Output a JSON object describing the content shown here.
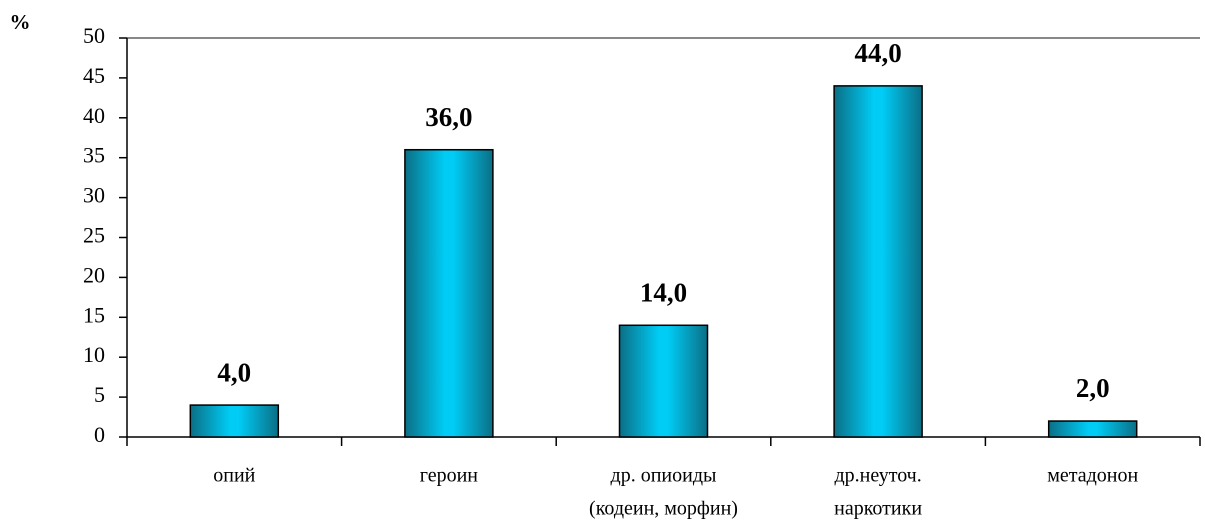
{
  "chart_data": {
    "type": "bar",
    "y_label": "%",
    "categories": [
      [
        "опий"
      ],
      [
        "героин"
      ],
      [
        "др. опиоиды",
        "(кодеин, морфин)"
      ],
      [
        "др.неуточ.",
        "наркотики"
      ],
      [
        "метадонон"
      ]
    ],
    "values": [
      4,
      36,
      14,
      44,
      2
    ],
    "value_labels": [
      "4,0",
      "36,0",
      "14,0",
      "44,0",
      "2,0"
    ],
    "ylim": [
      0,
      50
    ],
    "yticks": [
      0,
      5,
      10,
      15,
      20,
      25,
      30,
      35,
      40,
      45,
      50
    ]
  }
}
